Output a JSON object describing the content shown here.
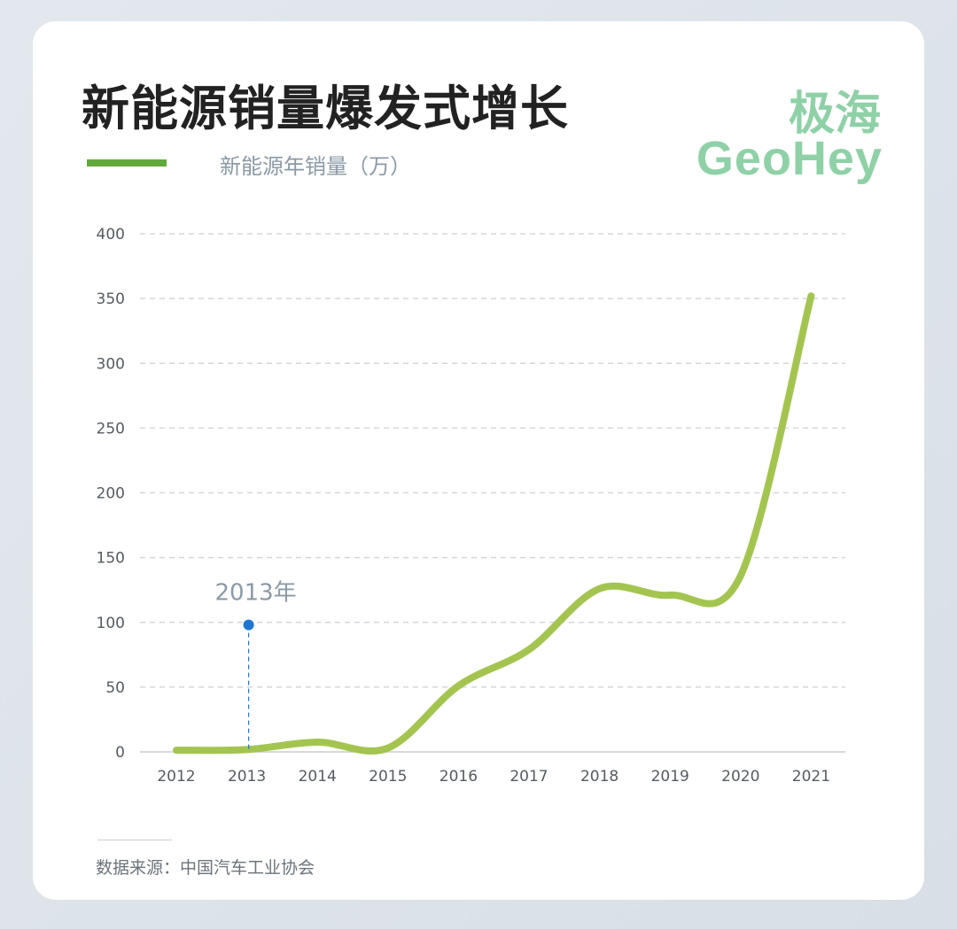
{
  "header": {
    "title": "新能源销量爆发式增长",
    "legend_label": "新能源年销量（万）"
  },
  "brand": {
    "name_cn": "极海",
    "name_en": "GeoHey"
  },
  "source": {
    "text": "数据来源：中国汽车工业协会"
  },
  "colors": {
    "line": "#a3c550",
    "legend": "#62a83d",
    "brand": "#8fd1a7",
    "annotation": "#1f77d0"
  },
  "chart_data": {
    "type": "line",
    "x": [
      "2012",
      "2013",
      "2014",
      "2015",
      "2016",
      "2017",
      "2018",
      "2019",
      "2020",
      "2021"
    ],
    "series": [
      {
        "name": "新能源年销量（万）",
        "values": [
          1.3,
          1.8,
          7.5,
          3,
          51,
          79,
          126,
          121,
          136,
          352
        ]
      }
    ],
    "ylim": [
      0,
      400
    ],
    "yticks": [
      0,
      50,
      100,
      150,
      200,
      250,
      300,
      350,
      400
    ],
    "grid": true,
    "annotation": {
      "x": "2013",
      "y": 98,
      "label": "2013年"
    }
  }
}
